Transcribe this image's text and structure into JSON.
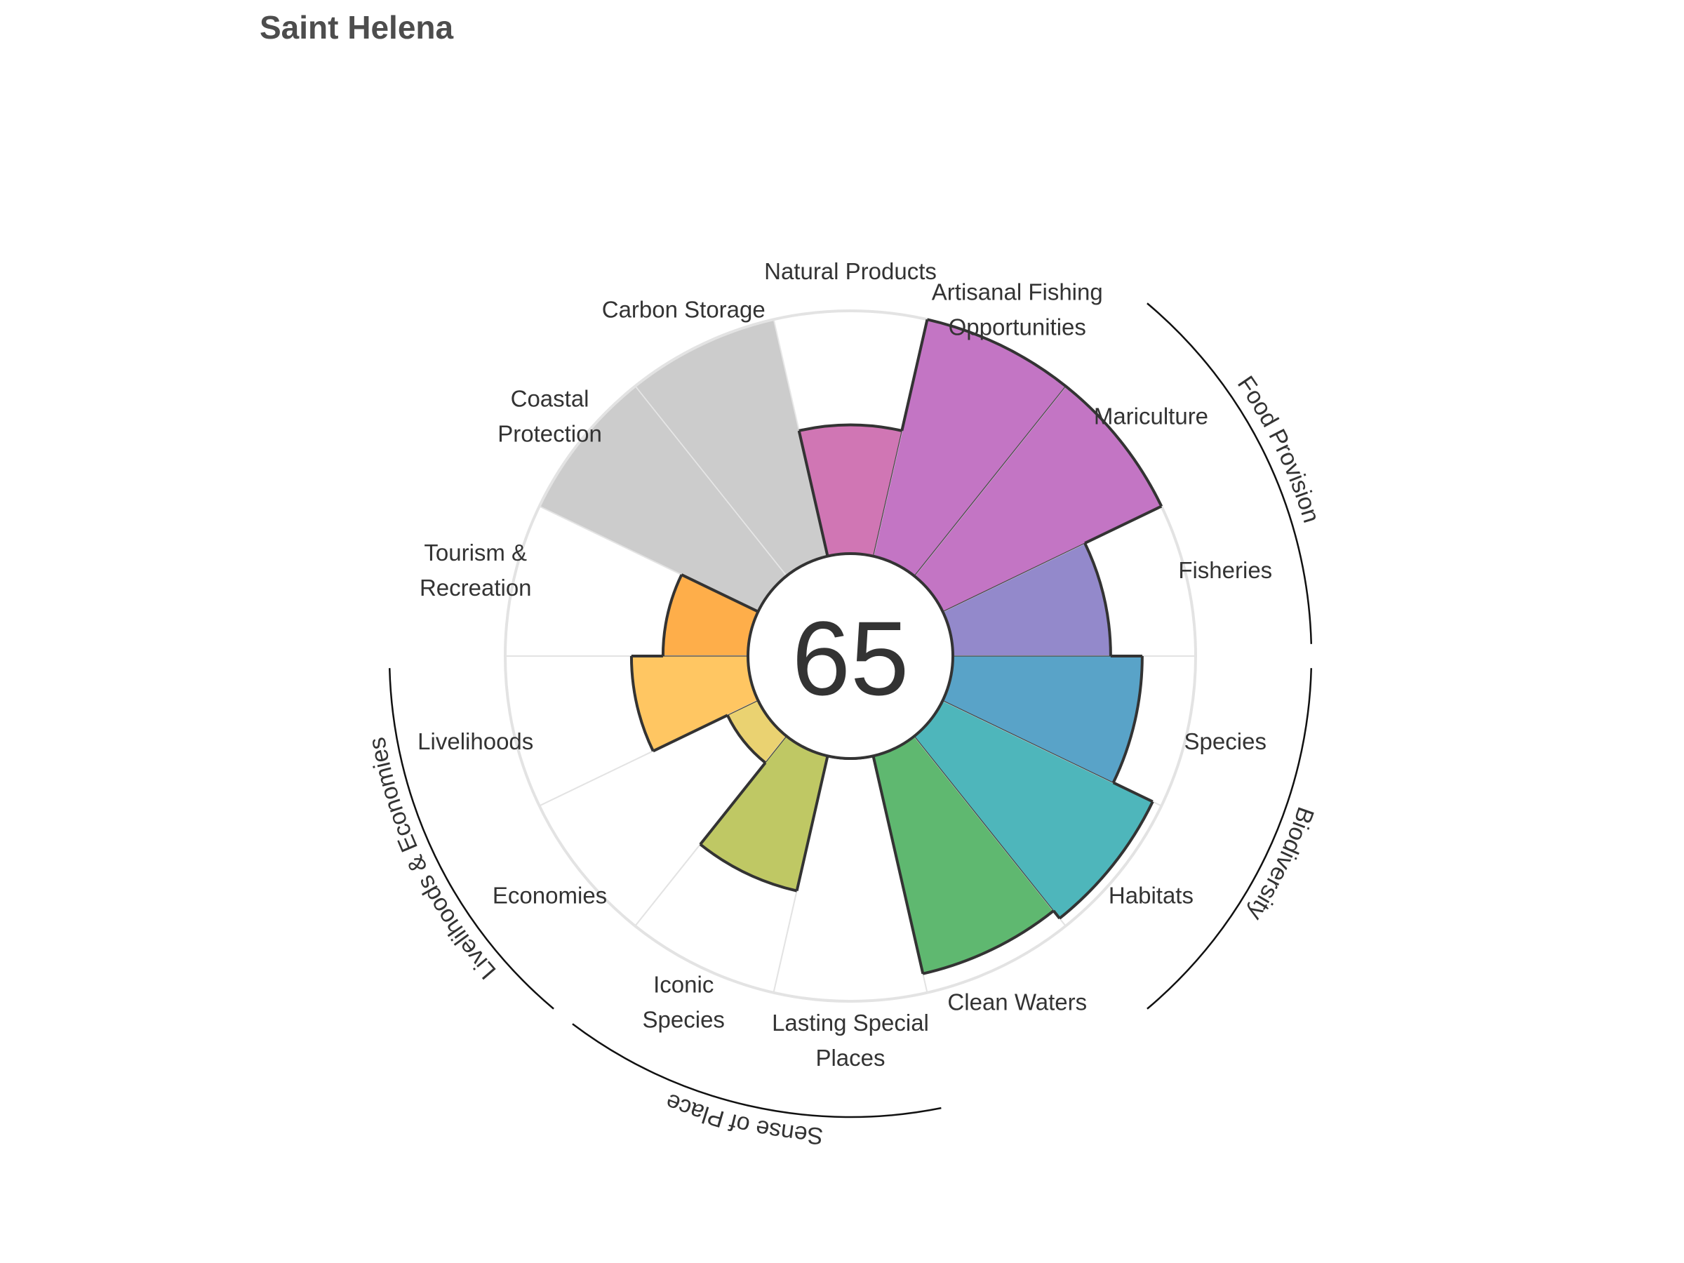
{
  "chart_data": {
    "type": "polar-bar",
    "title": "Saint Helena",
    "center_score": "65",
    "max_value": 100,
    "petals": [
      {
        "label": "Fisheries",
        "value": 65,
        "color": "#9389CB",
        "group": "Food Provision"
      },
      {
        "label": "Mariculture",
        "value": 100,
        "color": "#C375C4",
        "group": "Food Provision"
      },
      {
        "label": "Artisanal Fishing Opportunities",
        "label_lines": [
          "Artisanal Fishing",
          "Opportunities"
        ],
        "value": 100,
        "color": "#C375C4",
        "group": ""
      },
      {
        "label": "Natural Products",
        "value": 53,
        "color": "#D076B4",
        "group": ""
      },
      {
        "label": "Carbon Storage",
        "value": null,
        "color": "#CCCCCC",
        "group": ""
      },
      {
        "label": "Coastal Protection",
        "label_lines": [
          "Coastal",
          "Protection"
        ],
        "value": null,
        "color": "#CCCCCC",
        "group": ""
      },
      {
        "label": "Tourism & Recreation",
        "label_lines": [
          "Tourism &",
          "Recreation"
        ],
        "value": 35,
        "color": "#FEAE4A",
        "group": ""
      },
      {
        "label": "Livelihoods",
        "value": 48,
        "color": "#FFC662",
        "group": "Livelihoods & Economies"
      },
      {
        "label": "Economies",
        "value": 14,
        "color": "#EAD271",
        "group": "Livelihoods & Economies"
      },
      {
        "label": "Iconic Species",
        "label_lines": [
          "Iconic",
          "Species"
        ],
        "value": 57,
        "color": "#BFC864",
        "group": "Sense of Place"
      },
      {
        "label": "Lasting Special Places",
        "label_lines": [
          "Lasting Special",
          "Places"
        ],
        "value": 0,
        "color": "#A8C760",
        "group": "Sense of Place"
      },
      {
        "label": "Clean Waters",
        "value": 92,
        "color": "#5FB870",
        "group": ""
      },
      {
        "label": "Habitats",
        "value": 96,
        "color": "#4EB6BB",
        "group": "Biodiversity"
      },
      {
        "label": "Species",
        "value": 78,
        "color": "#59A3C8",
        "group": "Biodiversity"
      }
    ],
    "groups": [
      "Food Provision",
      "Biodiversity",
      "Sense of Place",
      "Livelihoods & Economies"
    ],
    "highlight_stroke": "#333333",
    "grid_color": "#E3E3E3"
  }
}
